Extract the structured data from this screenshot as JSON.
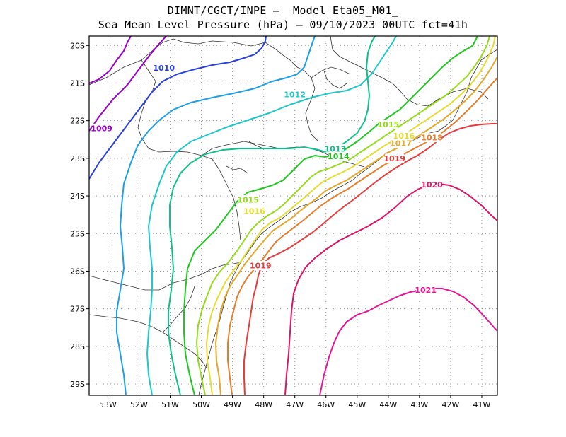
{
  "title_line1": "DIMNT/CGCT/INPE –  Model Eta05_M01_",
  "title_line2": "Sea Mean Level Pressure (hPa) – 09/10/2023 00UTC fct=41h",
  "x_ticks": [
    "53W",
    "52W",
    "51W",
    "50W",
    "49W",
    "48W",
    "47W",
    "46W",
    "45W",
    "44W",
    "43W",
    "42W",
    "41W"
  ],
  "y_ticks": [
    "20S",
    "21S",
    "22S",
    "23S",
    "24S",
    "25S",
    "26S",
    "27S",
    "28S",
    "29S"
  ],
  "colors": {
    "1009": "#9a00c8",
    "1010": "#2a40e0",
    "1011": "#1ea0e6",
    "1012": "#1ec8c8",
    "1013": "#10c08a",
    "1014": "#1ec81e",
    "1015": "#96dc1e",
    "1016": "#e6dc32",
    "1017": "#e6a82a",
    "1018": "#e67d2a",
    "1019": "#e63c3c",
    "1020": "#dc1464",
    "1021": "#e61496"
  },
  "contour_labels": [
    {
      "value": "1009",
      "level": "1009",
      "lon": -53.2,
      "lat": -22.2
    },
    {
      "value": "1010",
      "level": "1010",
      "lon": -51.2,
      "lat": -20.6
    },
    {
      "value": "1012",
      "level": "1012",
      "lon": -47.0,
      "lat": -21.3
    },
    {
      "value": "1013",
      "level": "1013",
      "lon": -45.7,
      "lat": -22.75
    },
    {
      "value": "1014",
      "level": "1014",
      "lon": -45.6,
      "lat": -22.95
    },
    {
      "value": "1015",
      "level": "1015",
      "lon": -48.5,
      "lat": -24.1
    },
    {
      "value": "1016",
      "level": "1016",
      "lon": -48.3,
      "lat": -24.4
    },
    {
      "value": "1015",
      "level": "1015",
      "lon": -44.0,
      "lat": -22.1
    },
    {
      "value": "1016",
      "level": "1016",
      "lon": -43.5,
      "lat": -22.4
    },
    {
      "value": "1017",
      "level": "1017",
      "lon": -43.6,
      "lat": -22.6
    },
    {
      "value": "1018",
      "level": "1018",
      "lon": -42.6,
      "lat": -22.45
    },
    {
      "value": "1019",
      "level": "1019",
      "lon": -43.8,
      "lat": -23.0
    },
    {
      "value": "1019",
      "level": "1019",
      "lon": -48.1,
      "lat": -25.85
    },
    {
      "value": "1020",
      "level": "1020",
      "lon": -42.6,
      "lat": -23.7
    },
    {
      "value": "1021",
      "level": "1021",
      "lon": -42.8,
      "lat": -26.5
    }
  ]
}
